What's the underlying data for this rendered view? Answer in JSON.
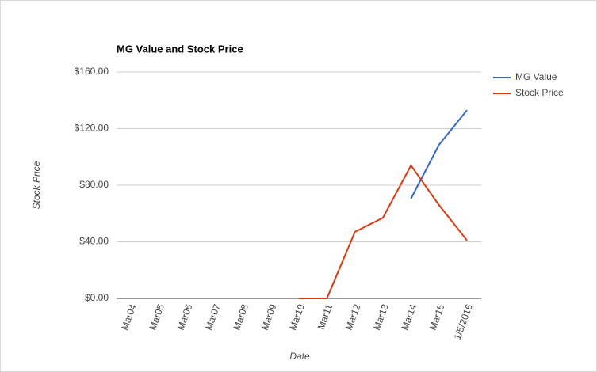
{
  "chart_data": {
    "type": "line",
    "title": "MG Value and Stock Price",
    "x_label": "Date",
    "y_label": "Stock Price",
    "categories": [
      "Mar04",
      "Mar05",
      "Mar06",
      "Mar07",
      "Mar08",
      "Mar09",
      "Mar10",
      "Mar11",
      "Mar12",
      "Mar13",
      "Mar14",
      "Mar15",
      "1/5/2016"
    ],
    "series": [
      {
        "name": "MG Value",
        "color": "#3366cc",
        "values": [
          null,
          null,
          null,
          null,
          null,
          null,
          null,
          null,
          null,
          null,
          70.5,
          108.5,
          133
        ]
      },
      {
        "name": "Stock Price",
        "color": "#dc3912",
        "values": [
          null,
          null,
          null,
          null,
          null,
          null,
          0,
          0,
          47,
          57,
          94,
          66,
          41
        ]
      }
    ],
    "ylim": [
      0,
      160
    ],
    "yticks": [
      {
        "value": 0,
        "label": "$0.00"
      },
      {
        "value": 40,
        "label": "$40.00"
      },
      {
        "value": 80,
        "label": "$80.00"
      },
      {
        "value": 120,
        "label": "$120.00"
      },
      {
        "value": 160,
        "label": "$160.00"
      }
    ],
    "grid": true,
    "legend": "right"
  }
}
